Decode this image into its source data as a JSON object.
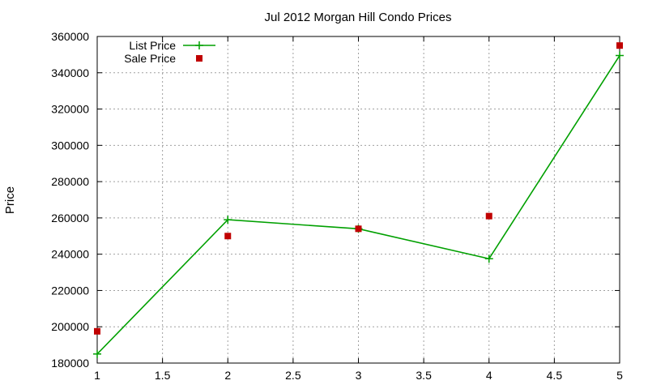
{
  "chart_data": {
    "type": "line",
    "title": "Jul 2012 Morgan Hill Condo Prices",
    "xlabel": "",
    "ylabel": "Price",
    "xlim": [
      1,
      5
    ],
    "ylim": [
      180000,
      360000
    ],
    "xticks": [
      "1",
      "1.5",
      "2",
      "2.5",
      "3",
      "3.5",
      "4",
      "4.5",
      "5"
    ],
    "yticks": [
      "180000",
      "200000",
      "220000",
      "240000",
      "260000",
      "280000",
      "300000",
      "320000",
      "340000",
      "360000"
    ],
    "grid": true,
    "legend": "top-left",
    "series": [
      {
        "name": "List Price",
        "style": "line-plus",
        "color": "#00a000",
        "x": [
          1,
          2,
          3,
          4,
          5
        ],
        "y": [
          185000,
          259000,
          254000,
          237500,
          349500
        ]
      },
      {
        "name": "Sale Price",
        "style": "square",
        "color": "#c00000",
        "x": [
          1,
          2,
          3,
          4,
          5
        ],
        "y": [
          197500,
          250000,
          254000,
          261000,
          355000
        ]
      }
    ]
  }
}
